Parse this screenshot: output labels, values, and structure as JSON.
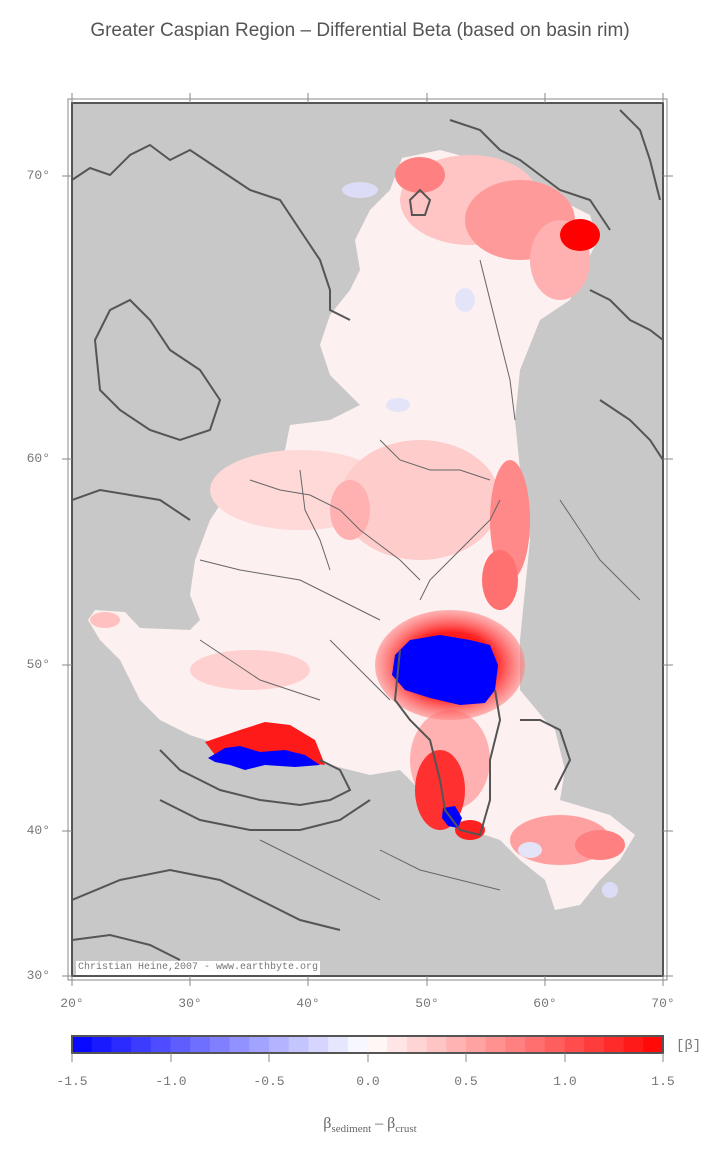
{
  "title": "Greater Caspian Region – Differential Beta (based on basin rim)",
  "credit": "Christian Heine,2007 - www.earthbyte.org",
  "lat_labels": [
    "70°",
    "60°",
    "50°",
    "40°",
    "30°"
  ],
  "lon_labels": [
    "20°",
    "30°",
    "40°",
    "50°",
    "60°",
    "70°"
  ],
  "colorbar": {
    "tick_labels": [
      "-1.5",
      "-1.0",
      "-0.5",
      "0.0",
      "0.5",
      "1.0",
      "1.5"
    ],
    "unit": "[β]",
    "min": -1.5,
    "max": 1.5,
    "colors": {
      "neg": "#0000ff",
      "zero": "#ffffff",
      "pos": "#ff0000"
    }
  },
  "axis_title": {
    "a": "β",
    "a_sub": "sediment",
    "sep": " – ",
    "b": "β",
    "b_sub": "crust"
  },
  "colors": {
    "land": "#c8c8c8",
    "frame": "#555555",
    "coast": "#555555"
  }
}
